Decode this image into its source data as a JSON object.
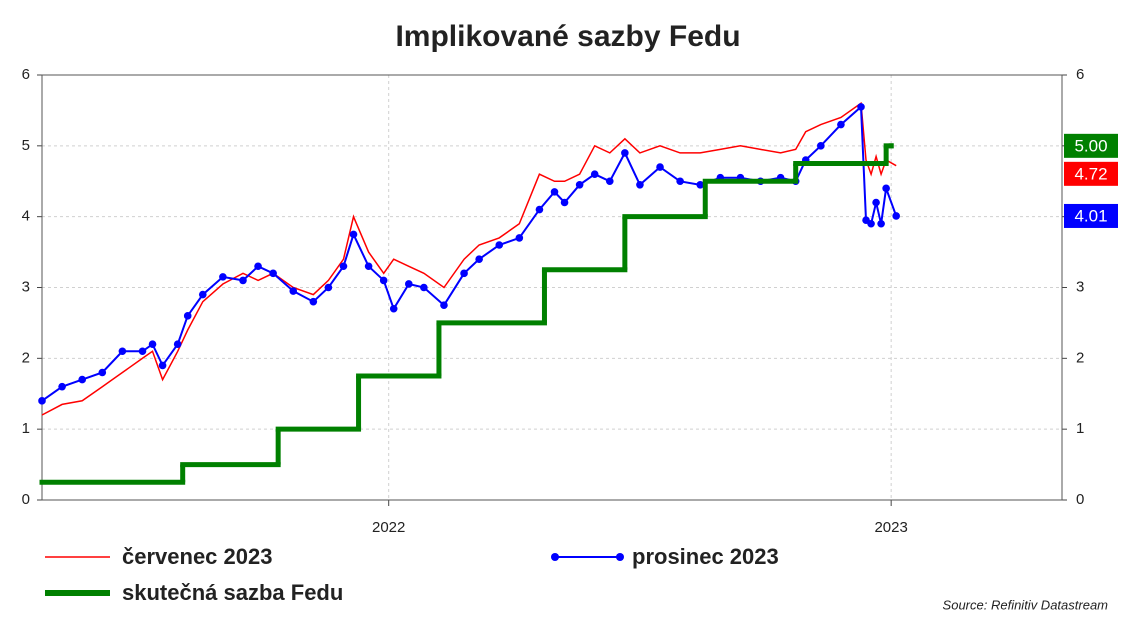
{
  "chart_data": {
    "type": "line",
    "title": "Implikované sazby Fedu",
    "source": "Source: Refinitiv Datastream",
    "xlim": [
      2021.31,
      2023.34
    ],
    "xticks": [
      2022,
      2023
    ],
    "ylim": [
      0,
      6
    ],
    "yticks": [
      0,
      1,
      2,
      3,
      4,
      5,
      6
    ],
    "y2lim": [
      0,
      6
    ],
    "y2ticks": [
      0,
      1,
      2,
      3,
      4,
      5,
      6
    ],
    "grid": true,
    "legend": "bottom",
    "series": [
      {
        "name": "červenec 2023",
        "color": "#ff0000",
        "markers": false,
        "x": [
          2021.31,
          2021.35,
          2021.39,
          2021.43,
          2021.47,
          2021.51,
          2021.53,
          2021.55,
          2021.58,
          2021.6,
          2021.63,
          2021.67,
          2021.71,
          2021.74,
          2021.77,
          2021.81,
          2021.85,
          2021.88,
          2021.91,
          2021.93,
          2021.96,
          2021.99,
          2022.01,
          2022.04,
          2022.07,
          2022.11,
          2022.15,
          2022.18,
          2022.22,
          2022.26,
          2022.3,
          2022.33,
          2022.35,
          2022.38,
          2022.41,
          2022.44,
          2022.47,
          2022.5,
          2022.54,
          2022.58,
          2022.62,
          2022.66,
          2022.7,
          2022.74,
          2022.78,
          2022.81,
          2022.83,
          2022.86,
          2022.9,
          2022.94,
          2022.95,
          2022.96,
          2022.97,
          2022.98,
          2022.99,
          2023.01
        ],
        "values": [
          1.2,
          1.35,
          1.4,
          1.6,
          1.8,
          2.0,
          2.1,
          1.7,
          2.1,
          2.4,
          2.8,
          3.05,
          3.2,
          3.1,
          3.2,
          3.0,
          2.9,
          3.1,
          3.4,
          4.0,
          3.5,
          3.2,
          3.4,
          3.3,
          3.2,
          3.0,
          3.4,
          3.6,
          3.7,
          3.9,
          4.6,
          4.5,
          4.5,
          4.6,
          5.0,
          4.9,
          5.1,
          4.9,
          5.0,
          4.9,
          4.9,
          4.95,
          5.0,
          4.95,
          4.9,
          4.95,
          5.2,
          5.3,
          5.4,
          5.6,
          4.8,
          4.6,
          4.85,
          4.6,
          4.8,
          4.72
        ],
        "value_labels": [
          null,
          null,
          null,
          null,
          null,
          null,
          null,
          null,
          null,
          null,
          null,
          null,
          null,
          null,
          null,
          null,
          null,
          null,
          null,
          null,
          null,
          null,
          null,
          null,
          null,
          null,
          null,
          null,
          null,
          null,
          null,
          null,
          null,
          null,
          null,
          null,
          null,
          null,
          null,
          null,
          null,
          null,
          null,
          null,
          null,
          null,
          null,
          null,
          null,
          null,
          null,
          null,
          null,
          null,
          null,
          "4.72"
        ]
      },
      {
        "name": "prosinec 2023",
        "color": "#0000ff",
        "markers": true,
        "x": [
          2021.31,
          2021.35,
          2021.39,
          2021.43,
          2021.47,
          2021.51,
          2021.53,
          2021.55,
          2021.58,
          2021.6,
          2021.63,
          2021.67,
          2021.71,
          2021.74,
          2021.77,
          2021.81,
          2021.85,
          2021.88,
          2021.91,
          2021.93,
          2021.96,
          2021.99,
          2022.01,
          2022.04,
          2022.07,
          2022.11,
          2022.15,
          2022.18,
          2022.22,
          2022.26,
          2022.3,
          2022.33,
          2022.35,
          2022.38,
          2022.41,
          2022.44,
          2022.47,
          2022.5,
          2022.54,
          2022.58,
          2022.62,
          2022.66,
          2022.7,
          2022.74,
          2022.78,
          2022.81,
          2022.83,
          2022.86,
          2022.9,
          2022.94,
          2022.95,
          2022.96,
          2022.97,
          2022.98,
          2022.99,
          2023.01
        ],
        "values": [
          1.4,
          1.6,
          1.7,
          1.8,
          2.1,
          2.1,
          2.2,
          1.9,
          2.2,
          2.6,
          2.9,
          3.15,
          3.1,
          3.3,
          3.2,
          2.95,
          2.8,
          3.0,
          3.3,
          3.75,
          3.3,
          3.1,
          2.7,
          3.05,
          3.0,
          2.75,
          3.2,
          3.4,
          3.6,
          3.7,
          4.1,
          4.35,
          4.2,
          4.45,
          4.6,
          4.5,
          4.9,
          4.45,
          4.7,
          4.5,
          4.45,
          4.55,
          4.55,
          4.5,
          4.55,
          4.5,
          4.8,
          5.0,
          5.3,
          5.55,
          3.95,
          3.9,
          4.2,
          3.9,
          4.4,
          4.01
        ],
        "value_labels": [
          null,
          null,
          null,
          null,
          null,
          null,
          null,
          null,
          null,
          null,
          null,
          null,
          null,
          null,
          null,
          null,
          null,
          null,
          null,
          null,
          null,
          null,
          null,
          null,
          null,
          null,
          null,
          null,
          null,
          null,
          null,
          null,
          null,
          null,
          null,
          null,
          null,
          null,
          null,
          null,
          null,
          null,
          null,
          null,
          null,
          null,
          null,
          null,
          null,
          null,
          null,
          null,
          null,
          null,
          null,
          "4.01"
        ]
      },
      {
        "name": "skutečná sazba Fedu",
        "color": "#008000",
        "markers": false,
        "step": true,
        "x": [
          2021.31,
          2021.59,
          2021.78,
          2021.94,
          2022.1,
          2022.31,
          2022.47,
          2022.63,
          2022.81,
          2022.99,
          2023.0
        ],
        "values": [
          0.25,
          0.5,
          1.0,
          1.75,
          2.5,
          3.25,
          4.0,
          4.5,
          4.75,
          5.0,
          5.0
        ],
        "value_labels": [
          null,
          null,
          null,
          null,
          null,
          null,
          null,
          null,
          null,
          null,
          "5.00"
        ]
      }
    ]
  }
}
